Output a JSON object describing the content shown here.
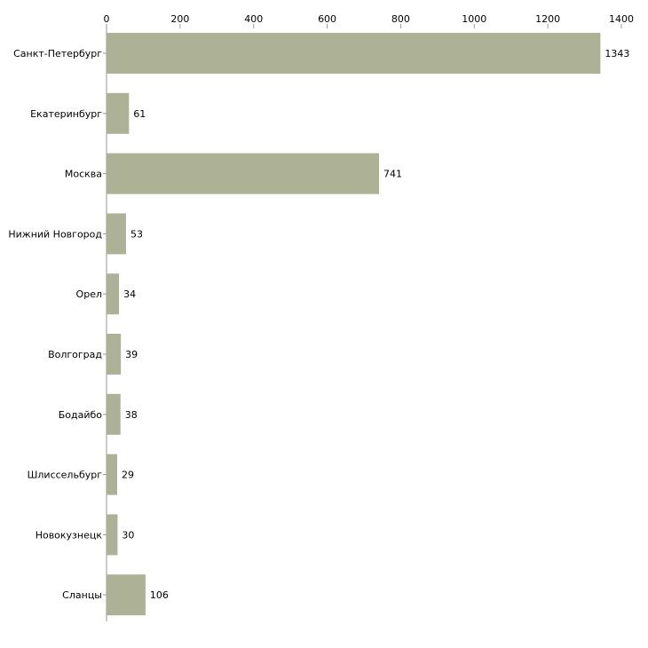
{
  "chart_data": {
    "type": "bar",
    "orientation": "horizontal",
    "title": "",
    "xlabel": "",
    "ylabel": "",
    "xlim": [
      0,
      1400
    ],
    "x_ticks": [
      0,
      200,
      400,
      600,
      800,
      1000,
      1200,
      1400
    ],
    "x_tick_labels": [
      "0",
      "200",
      "400",
      "600",
      "800",
      "1000",
      "1200",
      "1400"
    ],
    "x_axis_position": "top",
    "grid": false,
    "legend": "none",
    "categories": [
      "Санкт-Петербург",
      "Екатеринбург",
      "Москва",
      "Нижний Новгород",
      "Орел",
      "Волгоград",
      "Бодайбо",
      "Шлиссельбург",
      "Новокузнецк",
      "Сланцы"
    ],
    "values": [
      1343,
      61,
      741,
      53,
      34,
      39,
      38,
      29,
      30,
      106
    ],
    "value_labels": [
      "1343",
      "61",
      "741",
      "53",
      "34",
      "39",
      "38",
      "29",
      "30",
      "106"
    ],
    "bar_color": "#adb297"
  }
}
